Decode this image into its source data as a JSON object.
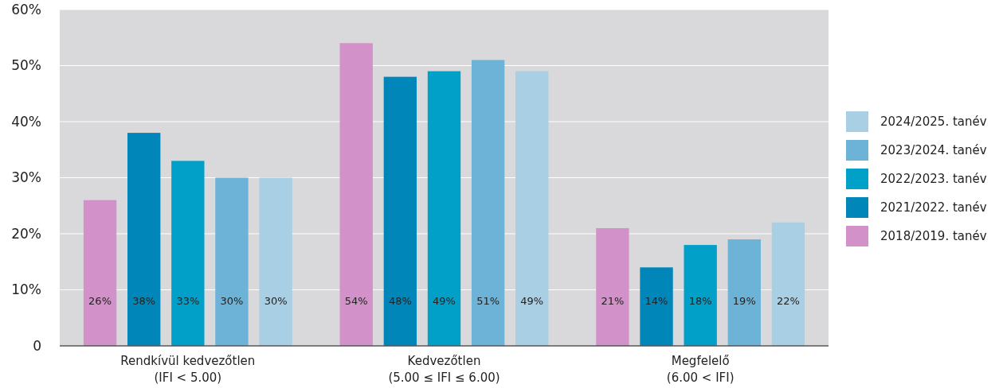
{
  "chart_data": {
    "type": "bar",
    "categories": [
      "Rendkívül kedvezőtlen\n(IFI < 5.00)",
      "Kedvezőtlen\n(5.00 ≤ IFI ≤ 6.00)",
      "Megfelelő\n(6.00 < IFI)"
    ],
    "series": [
      {
        "name": "2018/2019. tanév",
        "color": "#d291c8",
        "values": [
          26,
          54,
          21
        ],
        "value_labels": [
          "26%",
          "54%",
          "21%"
        ]
      },
      {
        "name": "2021/2022. tanév",
        "color": "#0086b8",
        "values": [
          38,
          48,
          14
        ],
        "value_labels": [
          "38%",
          "48%",
          "14%"
        ]
      },
      {
        "name": "2022/2023. tanév",
        "color": "#00a0c8",
        "values": [
          33,
          49,
          18
        ],
        "value_labels": [
          "33%",
          "49%",
          "18%"
        ]
      },
      {
        "name": "2023/2024. tanév",
        "color": "#6db3d8",
        "values": [
          30,
          51,
          19
        ],
        "value_labels": [
          "30%",
          "51%",
          "19%"
        ]
      },
      {
        "name": "2024/2025. tanév",
        "color": "#a8cfe3",
        "values": [
          30,
          49,
          22
        ],
        "value_labels": [
          "30%",
          "49%",
          "22%"
        ]
      }
    ],
    "ylim": [
      0,
      60
    ],
    "yticks": [
      0,
      {
        "value": 10,
        "label": "10%"
      },
      {
        "value": 20,
        "label": "20%"
      },
      {
        "value": 30,
        "label": "30%"
      },
      {
        "value": 40,
        "label": "40%"
      },
      {
        "value": 50,
        "label": "50%"
      },
      {
        "value": 60,
        "label": "60%"
      }
    ],
    "grid": "y",
    "legend": "right"
  }
}
